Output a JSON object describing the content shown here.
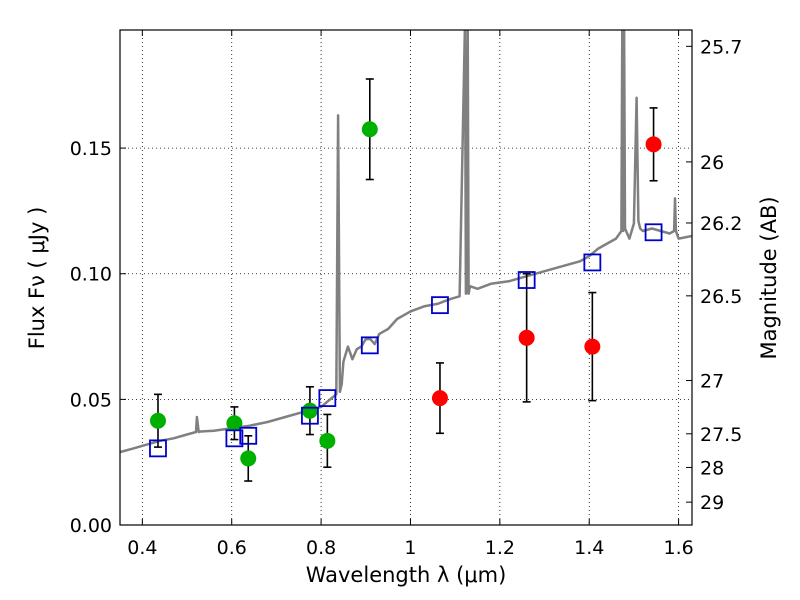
{
  "chart_data": {
    "type": "scatter",
    "xlabel": "Wavelength  λ (μm)",
    "ylabel": "Flux  Fν  ( μJy )",
    "y2label": "Magnitude (AB)",
    "xlim": [
      0.35,
      1.63
    ],
    "ylim": [
      0.0,
      0.197
    ],
    "grid": true,
    "x_ticks": [
      0.4,
      0.6,
      0.8,
      1.0,
      1.2,
      1.4,
      1.6
    ],
    "x_tick_labels": [
      "0.4",
      "0.6",
      "0.8",
      "1",
      "1.2",
      "1.4",
      "1.6"
    ],
    "y_ticks": [
      0.0,
      0.05,
      0.1,
      0.15
    ],
    "y_tick_labels": [
      "0.00",
      "0.05",
      "0.10",
      "0.15"
    ],
    "y2_ticks": [
      {
        "label": "25.7",
        "flux": 0.1905
      },
      {
        "label": "26",
        "flux": 0.1445
      },
      {
        "label": "26.2",
        "flux": 0.1202
      },
      {
        "label": "26.5",
        "flux": 0.0912
      },
      {
        "label": "27",
        "flux": 0.0575
      },
      {
        "label": "27.5",
        "flux": 0.0363
      },
      {
        "label": "28",
        "flux": 0.0229
      },
      {
        "label": "29",
        "flux": 0.0091
      }
    ],
    "model_spectrum": {
      "color": "#808080",
      "x": [
        0.35,
        0.38,
        0.41,
        0.44,
        0.47,
        0.5,
        0.52,
        0.522,
        0.526,
        0.53,
        0.56,
        0.6,
        0.64,
        0.68,
        0.72,
        0.76,
        0.8,
        0.82,
        0.834,
        0.838,
        0.842,
        0.846,
        0.85,
        0.86,
        0.87,
        0.88,
        0.89,
        0.9,
        0.91,
        0.92,
        0.93,
        0.95,
        0.97,
        1.0,
        1.03,
        1.06,
        1.09,
        1.11,
        1.122,
        1.124,
        1.126,
        1.128,
        1.13,
        1.132,
        1.134,
        1.15,
        1.18,
        1.22,
        1.26,
        1.3,
        1.34,
        1.38,
        1.4,
        1.42,
        1.44,
        1.46,
        1.472,
        1.474,
        1.476,
        1.478,
        1.48,
        1.49,
        1.5,
        1.506,
        1.51,
        1.514,
        1.52,
        1.54,
        1.56,
        1.58,
        1.59,
        1.592,
        1.594,
        1.6,
        1.63
      ],
      "y": [
        0.029,
        0.0305,
        0.032,
        0.0335,
        0.0345,
        0.036,
        0.037,
        0.043,
        0.037,
        0.0372,
        0.0375,
        0.0385,
        0.0395,
        0.041,
        0.043,
        0.045,
        0.047,
        0.05,
        0.052,
        0.163,
        0.053,
        0.056,
        0.065,
        0.071,
        0.066,
        0.07,
        0.071,
        0.074,
        0.074,
        0.072,
        0.076,
        0.078,
        0.082,
        0.085,
        0.087,
        0.088,
        0.09,
        0.091,
        0.2,
        0.092,
        0.093,
        0.2,
        0.092,
        0.094,
        0.095,
        0.094,
        0.096,
        0.097,
        0.099,
        0.101,
        0.103,
        0.105,
        0.107,
        0.11,
        0.112,
        0.114,
        0.117,
        0.2,
        0.117,
        0.2,
        0.118,
        0.114,
        0.12,
        0.17,
        0.121,
        0.118,
        0.117,
        0.118,
        0.117,
        0.116,
        0.117,
        0.13,
        0.117,
        0.114,
        0.115
      ]
    },
    "series": [
      {
        "color": "#00b000",
        "marker": "circle",
        "points": [
          {
            "x": 0.435,
            "y": 0.0415,
            "err": 0.0105
          },
          {
            "x": 0.606,
            "y": 0.0405,
            "err": 0.0065
          },
          {
            "x": 0.637,
            "y": 0.0265,
            "err": 0.009
          },
          {
            "x": 0.775,
            "y": 0.0455,
            "err": 0.0095
          },
          {
            "x": 0.814,
            "y": 0.0335,
            "err": 0.0105
          },
          {
            "x": 0.909,
            "y": 0.1575,
            "err": 0.02
          }
        ]
      },
      {
        "color": "#ff0000",
        "marker": "circle",
        "points": [
          {
            "x": 1.066,
            "y": 0.0505,
            "err": 0.014
          },
          {
            "x": 1.26,
            "y": 0.0745,
            "err": 0.0255
          },
          {
            "x": 1.407,
            "y": 0.071,
            "err": 0.0215
          },
          {
            "x": 1.544,
            "y": 0.1515,
            "err": 0.0145
          }
        ]
      },
      {
        "color": "#0000cc",
        "marker": "square",
        "points": [
          {
            "x": 0.435,
            "y": 0.0305
          },
          {
            "x": 0.606,
            "y": 0.0345
          },
          {
            "x": 0.637,
            "y": 0.0355
          },
          {
            "x": 0.775,
            "y": 0.0435
          },
          {
            "x": 0.814,
            "y": 0.0505
          },
          {
            "x": 0.909,
            "y": 0.0715
          },
          {
            "x": 1.066,
            "y": 0.0875
          },
          {
            "x": 1.26,
            "y": 0.0975
          },
          {
            "x": 1.407,
            "y": 0.1045
          },
          {
            "x": 1.544,
            "y": 0.1165
          }
        ]
      }
    ]
  }
}
